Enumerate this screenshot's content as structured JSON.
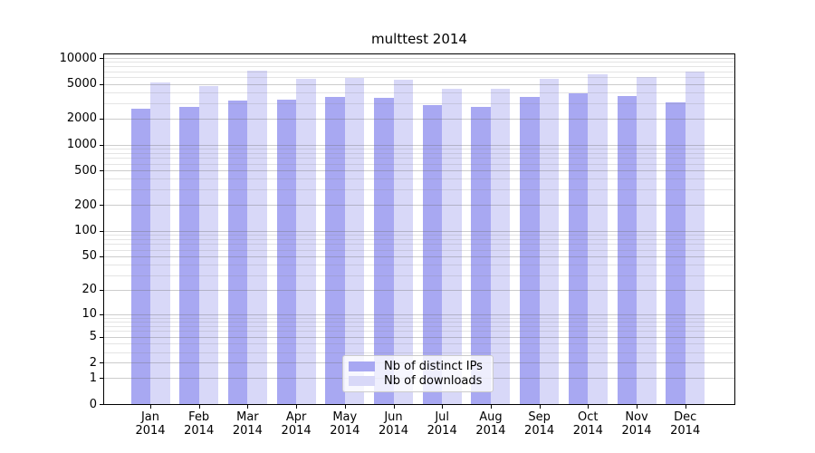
{
  "chart_data": {
    "type": "bar",
    "title": "multtest 2014",
    "categories": [
      "Jan",
      "Feb",
      "Mar",
      "Apr",
      "May",
      "Jun",
      "Jul",
      "Aug",
      "Sep",
      "Oct",
      "Nov",
      "Dec"
    ],
    "year_label": "2014",
    "series": [
      {
        "name": "Nb of distinct IPs",
        "color": "#a8a8f2",
        "values": [
          2600,
          2750,
          3200,
          3300,
          3570,
          3480,
          2850,
          2740,
          3530,
          3900,
          3620,
          3080
        ]
      },
      {
        "name": "Nb of downloads",
        "color": "#d8d8f8",
        "values": [
          5200,
          4700,
          7100,
          5700,
          5900,
          5600,
          4430,
          4450,
          5700,
          6550,
          6100,
          7000
        ]
      }
    ],
    "xlabel": "",
    "ylabel": "",
    "yscale": "log1p",
    "ylim": [
      0,
      10000
    ],
    "ytick_labels": [
      "0",
      "1",
      "2",
      "5",
      "10",
      "20",
      "50",
      "100",
      "200",
      "500",
      "1000",
      "2000",
      "5000",
      "10000"
    ],
    "grid": "on",
    "legend_position": "bottom-center"
  }
}
